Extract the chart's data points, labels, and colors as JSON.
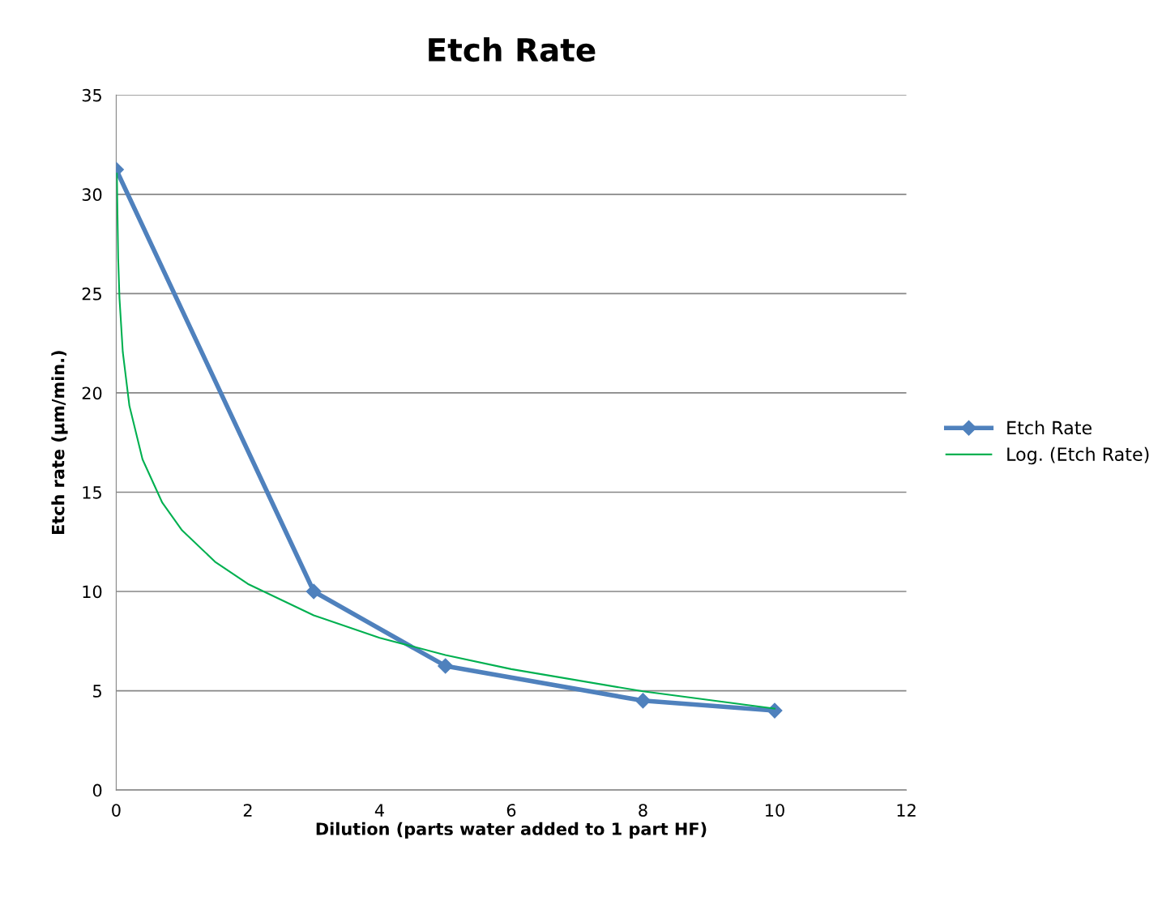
{
  "chart_data": {
    "type": "line",
    "title": "Etch Rate",
    "xlabel": "Dilution (parts water added to 1 part HF)",
    "ylabel": "Etch rate (µm/min.)",
    "xlim": [
      0,
      12
    ],
    "xticks": [
      0,
      2,
      4,
      6,
      8,
      10,
      12
    ],
    "ylim": [
      0,
      35
    ],
    "yticks": [
      0,
      5,
      10,
      15,
      20,
      25,
      30,
      35
    ],
    "grid": "y",
    "legend": "right",
    "series": [
      {
        "name": "Etch Rate",
        "color": "#4f81bd",
        "x": [
          0,
          3,
          5,
          8,
          10
        ],
        "values": [
          31.25,
          10,
          6.25,
          4.5,
          4
        ],
        "marker": "diamond",
        "line_style": "solid"
      },
      {
        "name": "Log. (Etch Rate)",
        "color": "#00b050",
        "x": [
          0.01,
          0.03,
          0.05,
          0.1,
          0.2,
          0.4,
          0.7,
          1,
          1.5,
          2,
          3,
          4,
          5,
          6,
          8,
          10
        ],
        "values": [
          31.04,
          26.76,
          24.76,
          22.06,
          19.36,
          16.65,
          14.47,
          13.08,
          11.5,
          10.38,
          8.8,
          7.67,
          6.8,
          6.09,
          4.97,
          4.1
        ],
        "marker": "none",
        "line_style": "solid"
      }
    ]
  }
}
